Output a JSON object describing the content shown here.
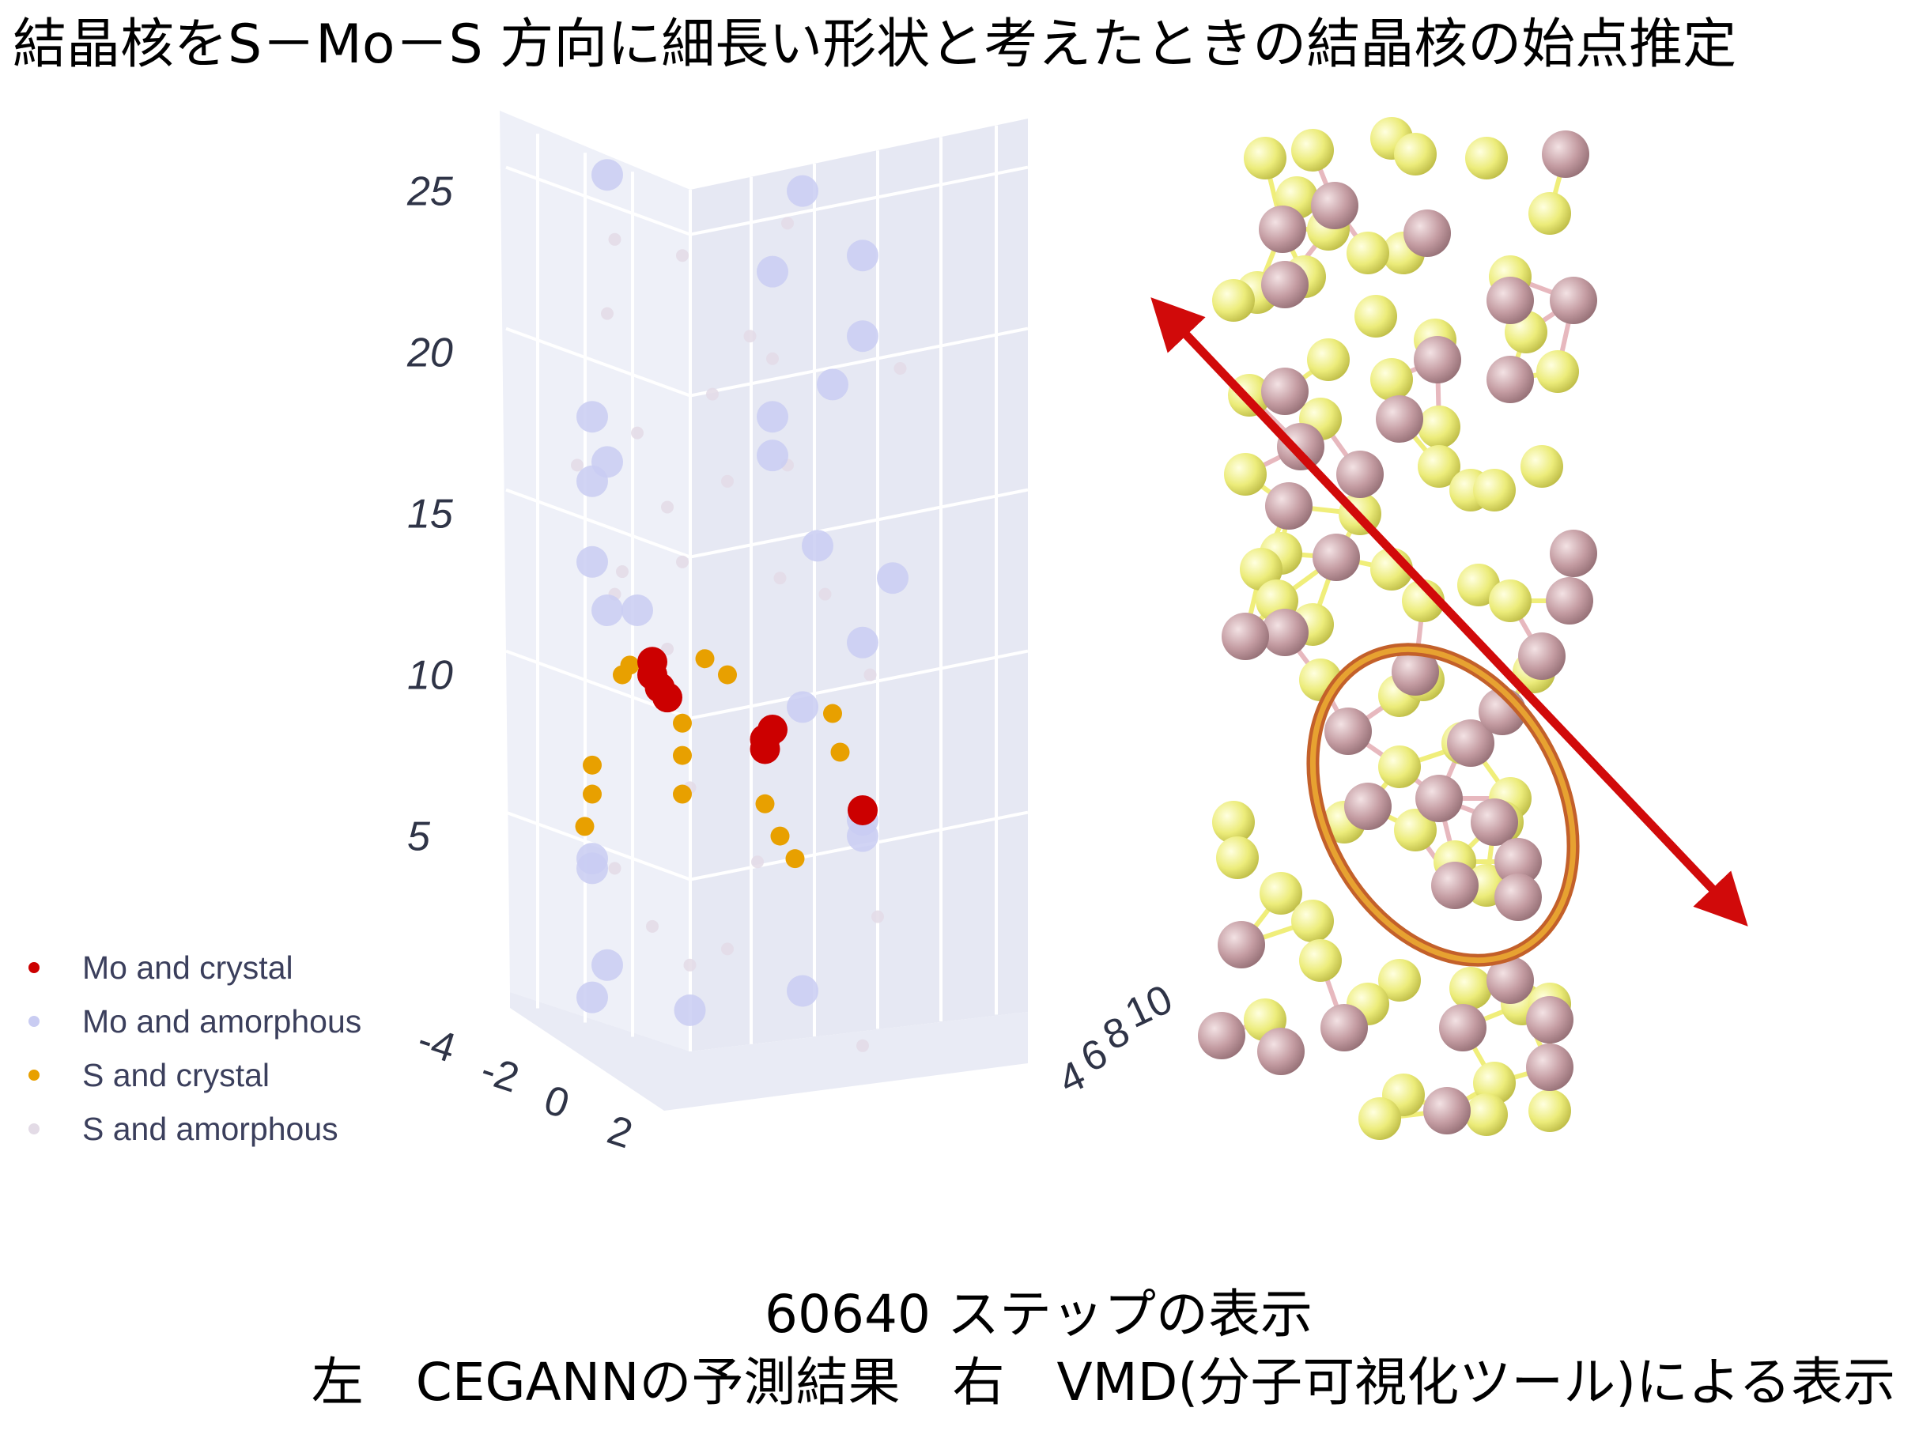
{
  "title": "結晶核をS－Mo－S 方向に細長い形状と考えたときの結晶核の始点推定",
  "caption": {
    "line1": "60640 ステップの表示",
    "line2": "左　CEGANNの予測結果　右　VMD(分子可視化ツール)による表示"
  },
  "chart_data": {
    "type": "scatter",
    "subtype": "3d-scatter",
    "title": "",
    "zlabel": "",
    "z_ticks": [
      5,
      10,
      15,
      20,
      25
    ],
    "zlim": [
      2,
      27
    ],
    "x_ticks": [
      "-4",
      "-2",
      "0",
      "2"
    ],
    "y_ticks": [
      "4",
      "6",
      "8",
      "10"
    ],
    "legend_position": "bottom-left",
    "series": [
      {
        "name": "Mo and crystal",
        "color": "#cc0000",
        "points": [
          {
            "x": -1.0,
            "y": 6.0,
            "z": 10.4
          },
          {
            "x": -1.0,
            "y": 6.0,
            "z": 10.0
          },
          {
            "x": -0.9,
            "y": 6.0,
            "z": 9.6
          },
          {
            "x": -0.8,
            "y": 6.0,
            "z": 9.3
          },
          {
            "x": 0.6,
            "y": 6.0,
            "z": 8.3
          },
          {
            "x": 0.5,
            "y": 6.0,
            "z": 8.0
          },
          {
            "x": 0.5,
            "y": 6.0,
            "z": 7.7
          },
          {
            "x": 1.8,
            "y": 6.0,
            "z": 5.8
          }
        ]
      },
      {
        "name": "Mo and amorphous",
        "color": "#c9ccf2",
        "points": [
          {
            "x": -1.6,
            "y": 6.0,
            "z": 25.5
          },
          {
            "x": 1.0,
            "y": 6.0,
            "z": 25.0
          },
          {
            "x": 0.6,
            "y": 6.0,
            "z": 22.5
          },
          {
            "x": 1.8,
            "y": 6.0,
            "z": 23.0
          },
          {
            "x": 1.8,
            "y": 6.0,
            "z": 20.5
          },
          {
            "x": 1.4,
            "y": 6.0,
            "z": 19.0
          },
          {
            "x": -1.8,
            "y": 6.0,
            "z": 18.0
          },
          {
            "x": 0.6,
            "y": 6.0,
            "z": 18.0
          },
          {
            "x": 0.6,
            "y": 6.0,
            "z": 16.8
          },
          {
            "x": -1.6,
            "y": 6.0,
            "z": 16.6
          },
          {
            "x": -1.8,
            "y": 6.0,
            "z": 16.0
          },
          {
            "x": 1.2,
            "y": 6.0,
            "z": 14.0
          },
          {
            "x": 2.2,
            "y": 6.0,
            "z": 13.0
          },
          {
            "x": -1.8,
            "y": 6.0,
            "z": 13.5
          },
          {
            "x": -1.6,
            "y": 6.0,
            "z": 12.0
          },
          {
            "x": -1.2,
            "y": 6.0,
            "z": 12.0
          },
          {
            "x": 1.8,
            "y": 6.0,
            "z": 11.0
          },
          {
            "x": 1.0,
            "y": 6.0,
            "z": 9.0
          },
          {
            "x": 1.8,
            "y": 6.0,
            "z": 5.5
          },
          {
            "x": 1.8,
            "y": 6.0,
            "z": 5.0
          },
          {
            "x": -1.8,
            "y": 6.0,
            "z": 4.3
          },
          {
            "x": -1.8,
            "y": 6.0,
            "z": 4.0
          },
          {
            "x": -1.6,
            "y": 6.0,
            "z": 1.0
          },
          {
            "x": -1.8,
            "y": 6.0,
            "z": 0.0
          },
          {
            "x": -0.5,
            "y": 6.0,
            "z": -0.4
          },
          {
            "x": 1.0,
            "y": 6.0,
            "z": 0.2
          }
        ]
      },
      {
        "name": "S and crystal",
        "color": "#e8a000",
        "points": [
          {
            "x": -1.3,
            "y": 6.0,
            "z": 10.3
          },
          {
            "x": -1.4,
            "y": 6.0,
            "z": 10.0
          },
          {
            "x": -0.3,
            "y": 6.0,
            "z": 10.5
          },
          {
            "x": 0.0,
            "y": 6.0,
            "z": 10.0
          },
          {
            "x": -0.6,
            "y": 6.0,
            "z": 8.5
          },
          {
            "x": -0.6,
            "y": 6.0,
            "z": 7.5
          },
          {
            "x": -0.6,
            "y": 6.0,
            "z": 6.3
          },
          {
            "x": 1.4,
            "y": 6.0,
            "z": 8.8
          },
          {
            "x": 1.5,
            "y": 6.0,
            "z": 7.6
          },
          {
            "x": -1.8,
            "y": 6.0,
            "z": 7.2
          },
          {
            "x": -1.8,
            "y": 6.0,
            "z": 6.3
          },
          {
            "x": -1.9,
            "y": 6.0,
            "z": 5.3
          },
          {
            "x": 0.5,
            "y": 6.0,
            "z": 6.0
          },
          {
            "x": 0.7,
            "y": 6.0,
            "z": 5.0
          },
          {
            "x": 0.9,
            "y": 6.0,
            "z": 4.3
          }
        ]
      },
      {
        "name": "S and amorphous",
        "color": "#e3dbe6",
        "points": [
          {
            "x": -1.5,
            "y": 6.0,
            "z": 23.5
          },
          {
            "x": -0.6,
            "y": 6.0,
            "z": 23.0
          },
          {
            "x": 0.8,
            "y": 6.0,
            "z": 24.0
          },
          {
            "x": 0.3,
            "y": 6.0,
            "z": 20.5
          },
          {
            "x": -1.6,
            "y": 6.0,
            "z": 21.2
          },
          {
            "x": 2.3,
            "y": 6.0,
            "z": 19.5
          },
          {
            "x": 0.6,
            "y": 6.0,
            "z": 19.8
          },
          {
            "x": -0.2,
            "y": 6.0,
            "z": 18.7
          },
          {
            "x": -1.2,
            "y": 6.0,
            "z": 17.5
          },
          {
            "x": -2.0,
            "y": 6.0,
            "z": 16.5
          },
          {
            "x": 0.8,
            "y": 6.0,
            "z": 16.5
          },
          {
            "x": 0.0,
            "y": 6.0,
            "z": 16.0
          },
          {
            "x": -0.8,
            "y": 6.0,
            "z": 15.2
          },
          {
            "x": -0.6,
            "y": 6.0,
            "z": 13.5
          },
          {
            "x": -1.4,
            "y": 6.0,
            "z": 13.2
          },
          {
            "x": 0.7,
            "y": 6.0,
            "z": 13.0
          },
          {
            "x": -1.5,
            "y": 6.0,
            "z": 12.5
          },
          {
            "x": 1.3,
            "y": 6.0,
            "z": 12.5
          },
          {
            "x": -0.8,
            "y": 6.0,
            "z": 10.8
          },
          {
            "x": 1.9,
            "y": 6.0,
            "z": 10.0
          },
          {
            "x": -0.5,
            "y": 6.0,
            "z": 6.5
          },
          {
            "x": -1.5,
            "y": 6.0,
            "z": 4.0
          },
          {
            "x": 0.4,
            "y": 6.0,
            "z": 4.2
          },
          {
            "x": 2.0,
            "y": 6.0,
            "z": 2.5
          },
          {
            "x": -1.0,
            "y": 6.0,
            "z": 2.2
          },
          {
            "x": 0.0,
            "y": 6.0,
            "z": 1.5
          },
          {
            "x": -0.5,
            "y": 6.0,
            "z": 1.0
          },
          {
            "x": 1.8,
            "y": 6.0,
            "z": -1.5
          }
        ]
      }
    ]
  },
  "molecule": {
    "mo_color": "#c49ca2",
    "s_color": "#ecec7a",
    "bond_mo_color": "#e7b8be",
    "bond_s_color": "#f0ee7a",
    "arrow_color": "#d10a0a",
    "highlight_color": "#e7a231"
  }
}
